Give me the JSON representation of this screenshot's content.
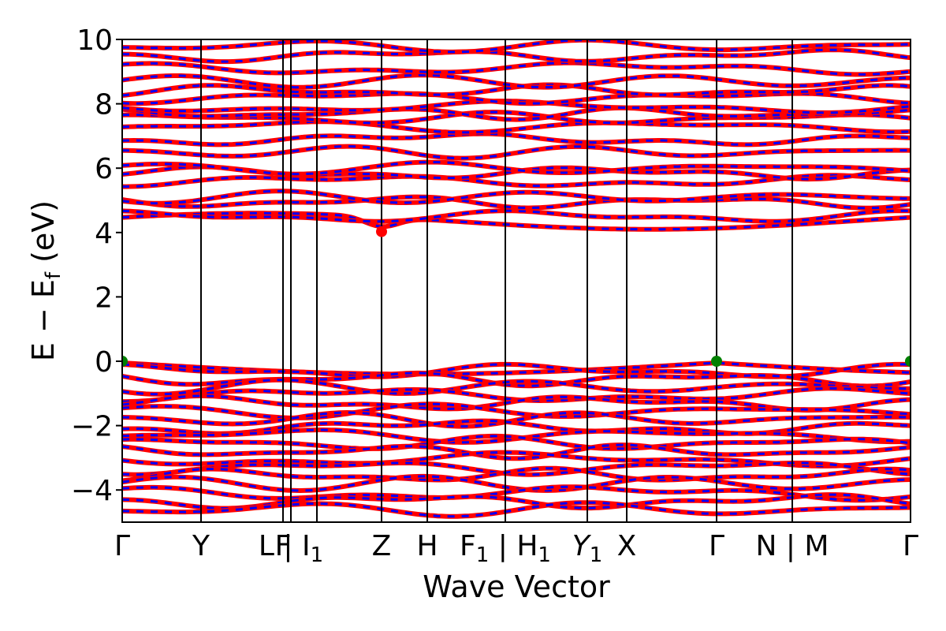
{
  "chart_data": {
    "type": "line",
    "xlabel": "Wave Vector",
    "ylabel": "E − E_f (eV)",
    "ylabel_main": "E − E",
    "ylabel_sub": "f",
    "ylabel_unit": " (eV)",
    "ylim": [
      -5,
      10
    ],
    "yticks": [
      -4,
      -2,
      0,
      2,
      4,
      6,
      8,
      10
    ],
    "ytick_labels": [
      "−4",
      "−2",
      "0",
      "2",
      "4",
      "6",
      "8",
      "10"
    ],
    "xlim": [
      0,
      1
    ],
    "kpoints": [
      {
        "label": "Γ",
        "pos": 0.0
      },
      {
        "label": "Y",
        "pos": 0.1
      },
      {
        "label": "F",
        "pos": 0.204
      },
      {
        "label": "L | I",
        "sub": "1",
        "pos": 0.214
      },
      {
        "label": "",
        "pos": 0.247
      },
      {
        "label": "Z",
        "pos": 0.329
      },
      {
        "label": "H",
        "pos": 0.387
      },
      {
        "label": "F",
        "sub": "1",
        "suffix": " | H",
        "sub2": "1",
        "pos": 0.486
      },
      {
        "label": "Y",
        "sub": "1",
        "pos": 0.59
      },
      {
        "label": "X",
        "pos": 0.64
      },
      {
        "label": "Γ",
        "pos": 0.754
      },
      {
        "label": "N | M",
        "pos": 0.85
      },
      {
        "label": "Γ",
        "pos": 1.0
      }
    ],
    "band_colors": {
      "primary": "#ff0000",
      "secondary": "#0000ff"
    },
    "extrema": [
      {
        "kind": "vbm",
        "x": 0.0,
        "y": 0.0,
        "color": "#008000"
      },
      {
        "kind": "vbm",
        "x": 0.754,
        "y": 0.0,
        "color": "#008000"
      },
      {
        "kind": "vbm",
        "x": 1.0,
        "y": 0.0,
        "color": "#008000"
      },
      {
        "kind": "cbm",
        "x": 0.329,
        "y": 4.03,
        "color": "#ff0000"
      }
    ],
    "conduction_band_base": [
      4.35,
      4.5,
      4.95,
      5.1,
      5.6,
      5.85,
      6.0,
      6.5,
      6.9,
      7.3,
      7.55,
      7.7,
      7.9,
      8.2,
      8.4,
      8.7,
      9.1,
      9.5,
      9.8
    ],
    "valence_band_base": [
      -0.05,
      -0.3,
      -0.55,
      -0.8,
      -1.05,
      -1.3,
      -1.55,
      -1.8,
      -2.05,
      -2.3,
      -2.55,
      -2.8,
      -3.05,
      -3.3,
      -3.55,
      -3.8,
      -4.1,
      -4.35,
      -4.6
    ]
  }
}
